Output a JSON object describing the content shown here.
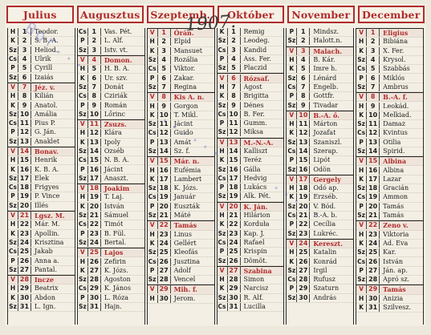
{
  "year": "1907.",
  "stamp_text": [
    "Bor...",
    "......",
    "....."
  ],
  "months": [
    {
      "name": "Julius",
      "days": [
        [
          "H",
          "1",
          "Teodor."
        ],
        [
          "K",
          "2",
          "S. B.-A."
        ],
        [
          "Sz",
          "3",
          "Heliod."
        ],
        [
          "Cs",
          "4",
          "Ulrik"
        ],
        [
          "P",
          "5",
          "Cyrill"
        ],
        [
          "Sz",
          "6",
          "Izaiás"
        ],
        [
          "V",
          "7",
          "Jéz. v."
        ],
        [
          "H",
          "8",
          "Kilián"
        ],
        [
          "K",
          "9",
          "Anatol."
        ],
        [
          "Sz",
          "10",
          "Amália"
        ],
        [
          "Cs",
          "11",
          "Pius P."
        ],
        [
          "P",
          "12",
          "G. Ján."
        ],
        [
          "Sz",
          "13",
          "Anaklet"
        ],
        [
          "V",
          "14",
          "Bonav."
        ],
        [
          "H",
          "15",
          "Henrik"
        ],
        [
          "K",
          "16",
          "K. B. A."
        ],
        [
          "Sz",
          "17",
          "Elek"
        ],
        [
          "Cs",
          "18",
          "Frigyes"
        ],
        [
          "P",
          "19",
          "P. Vince"
        ],
        [
          "Sz",
          "20",
          "Illés"
        ],
        [
          "V",
          "21",
          "Lgsz. M."
        ],
        [
          "H",
          "22",
          "Már. M."
        ],
        [
          "K",
          "23",
          "Apollin."
        ],
        [
          "Sz",
          "24",
          "Krisztina"
        ],
        [
          "Cs",
          "25",
          "Jakab"
        ],
        [
          "P",
          "26",
          "Anna a."
        ],
        [
          "Sz",
          "27",
          "Pantal."
        ],
        [
          "V",
          "28",
          "Incze"
        ],
        [
          "H",
          "29",
          "Beatrix"
        ],
        [
          "K",
          "30",
          "Abdon"
        ],
        [
          "Sz",
          "31",
          "L. Ign."
        ]
      ]
    },
    {
      "name": "Augusztus",
      "days": [
        [
          "Cs",
          "1",
          "Vas. Pét."
        ],
        [
          "P",
          "2",
          "L. Alf."
        ],
        [
          "Sz",
          "3",
          "Istv. vt."
        ],
        [
          "V",
          "4",
          "Domon."
        ],
        [
          "H",
          "5",
          "H. B. A."
        ],
        [
          "K",
          "6",
          "Ur. szv."
        ],
        [
          "Sz",
          "7",
          "Donát"
        ],
        [
          "Cs",
          "8",
          "Cziriák"
        ],
        [
          "P",
          "9",
          "Román"
        ],
        [
          "Sz",
          "10",
          "Lőrinc"
        ],
        [
          "V",
          "11",
          "Zsuzs."
        ],
        [
          "H",
          "12",
          "Klára"
        ],
        [
          "K",
          "13",
          "Ipoly"
        ],
        [
          "Sz",
          "14",
          "Özséb"
        ],
        [
          "Cs",
          "15",
          "N. B. A."
        ],
        [
          "P",
          "16",
          "Jácint"
        ],
        [
          "Sz",
          "17",
          "Anaszt."
        ],
        [
          "V",
          "18",
          "Joakim"
        ],
        [
          "H",
          "19",
          "T. Laj."
        ],
        [
          "K",
          "20",
          "István"
        ],
        [
          "Sz",
          "21",
          "Sámuel"
        ],
        [
          "Cs",
          "22",
          "Timót"
        ],
        [
          "P",
          "23",
          "B. Fül."
        ],
        [
          "Sz",
          "24",
          "Bertal."
        ],
        [
          "V",
          "25",
          "Lajos"
        ],
        [
          "H",
          "26",
          "Zefirin"
        ],
        [
          "K",
          "27",
          "K. Józs."
        ],
        [
          "Sz",
          "28",
          "Ágoston"
        ],
        [
          "Cs",
          "29",
          "K. János"
        ],
        [
          "P",
          "30",
          "L. Róza"
        ],
        [
          "Sz",
          "31",
          "Hajn."
        ]
      ]
    },
    {
      "name": "Szeptemb.",
      "days": [
        [
          "V",
          "1",
          "Órán."
        ],
        [
          "H",
          "2",
          "Elpid"
        ],
        [
          "K",
          "3",
          "Mansuet"
        ],
        [
          "Sz",
          "4",
          "Rozália"
        ],
        [
          "Cs",
          "5",
          "Viktor."
        ],
        [
          "P",
          "6",
          "Zakar."
        ],
        [
          "Sz",
          "7",
          "Regina"
        ],
        [
          "V",
          "8",
          "Kis A. n."
        ],
        [
          "H",
          "9",
          "Gorgon"
        ],
        [
          "K",
          "10",
          "T. Mikl."
        ],
        [
          "Sz",
          "11",
          "Jácint"
        ],
        [
          "Cs",
          "12",
          "Guido"
        ],
        [
          "P",
          "13",
          "Amát"
        ],
        [
          "Sz",
          "14",
          "Sz. f."
        ],
        [
          "V",
          "15",
          "Már. n."
        ],
        [
          "H",
          "16",
          "Eufémia"
        ],
        [
          "K",
          "17",
          "Lambert"
        ],
        [
          "Sz",
          "18",
          "K. Józs."
        ],
        [
          "Cs",
          "19",
          "Január"
        ],
        [
          "P",
          "20",
          "Euszták"
        ],
        [
          "Sz",
          "21",
          "Máté"
        ],
        [
          "V",
          "22",
          "Tamás"
        ],
        [
          "H",
          "23",
          "Linus"
        ],
        [
          "K",
          "24",
          "Gellért"
        ],
        [
          "Sz",
          "25",
          "Kleofás"
        ],
        [
          "Cs",
          "26",
          "Jusztina"
        ],
        [
          "P",
          "27",
          "Adolf"
        ],
        [
          "Sz",
          "28",
          "Vencel"
        ],
        [
          "V",
          "29",
          "Mih. f."
        ],
        [
          "H",
          "30",
          "Jerom."
        ]
      ]
    },
    {
      "name": "Október",
      "days": [
        [
          "K",
          "1",
          "Remig"
        ],
        [
          "Sz",
          "2",
          "Leodeg."
        ],
        [
          "Cs",
          "3",
          "Kandid"
        ],
        [
          "P",
          "4",
          "Ass. Fer."
        ],
        [
          "Sz",
          "5",
          "Placzid"
        ],
        [
          "V",
          "6",
          "Rózsaf."
        ],
        [
          "H",
          "7",
          "Ágost"
        ],
        [
          "K",
          "8",
          "Brigitta"
        ],
        [
          "Sz",
          "9",
          "Dénes"
        ],
        [
          "Cs",
          "10",
          "B. Fer."
        ],
        [
          "P",
          "11",
          "Gumm."
        ],
        [
          "Sz",
          "12",
          "Miksa"
        ],
        [
          "V",
          "13",
          "M.-N.-A."
        ],
        [
          "H",
          "14",
          "Kalliszt"
        ],
        [
          "K",
          "15",
          "Teréz"
        ],
        [
          "Sz",
          "16",
          "Gálla"
        ],
        [
          "Cs",
          "17",
          "Hedvig"
        ],
        [
          "P",
          "18",
          "Lukács"
        ],
        [
          "Sz",
          "19",
          "Alk. Pét."
        ],
        [
          "V",
          "20",
          "K. Ján."
        ],
        [
          "H",
          "21",
          "Hilárion"
        ],
        [
          "K",
          "22",
          "Korduła"
        ],
        [
          "Sz",
          "23",
          "Kap. J."
        ],
        [
          "Cs",
          "24",
          "Rafael"
        ],
        [
          "P",
          "25",
          "Krispin"
        ],
        [
          "Sz",
          "26",
          "Dömöt."
        ],
        [
          "V",
          "27",
          "Szabina"
        ],
        [
          "H",
          "28",
          "Simon"
        ],
        [
          "K",
          "29",
          "Narcisz"
        ],
        [
          "Sz",
          "30",
          "R. Alf."
        ],
        [
          "Cs",
          "31",
          "Lucilla"
        ]
      ]
    },
    {
      "name": "November",
      "days": [
        [
          "P",
          "1",
          "Mindsz."
        ],
        [
          "Sz",
          "2",
          "Halott.n."
        ],
        [
          "V",
          "3",
          "Malach."
        ],
        [
          "H",
          "4",
          "B. Kár."
        ],
        [
          "K",
          "5",
          "Imre h."
        ],
        [
          "Sz",
          "6",
          "Lénárd"
        ],
        [
          "Cs",
          "7",
          "Engelb."
        ],
        [
          "P",
          "8",
          "Gottfr."
        ],
        [
          "Sz",
          "9",
          "Tivadar"
        ],
        [
          "V",
          "10",
          "B.-A. ő."
        ],
        [
          "H",
          "11",
          "Márton"
        ],
        [
          "K",
          "12",
          "Jozafat"
        ],
        [
          "Sz",
          "13",
          "Szaniszl."
        ],
        [
          "Cs",
          "14",
          "Szerap."
        ],
        [
          "P",
          "15",
          "Lipót"
        ],
        [
          "Sz",
          "16",
          "Ödön"
        ],
        [
          "V",
          "17",
          "Gergely"
        ],
        [
          "H",
          "18",
          "Odó ap."
        ],
        [
          "K",
          "19",
          "Erzséb."
        ],
        [
          "Sz",
          "20",
          "V. Bód."
        ],
        [
          "Cs",
          "21",
          "B.-A. b."
        ],
        [
          "P",
          "22",
          "Cecília"
        ],
        [
          "Sz",
          "23",
          "Lukréc."
        ],
        [
          "V",
          "24",
          "Kereszt."
        ],
        [
          "H",
          "25",
          "Katalin"
        ],
        [
          "K",
          "26",
          "Konrád"
        ],
        [
          "Sz",
          "27",
          "Irgil"
        ],
        [
          "Cs",
          "28",
          "Rufusz"
        ],
        [
          "P",
          "29",
          "Szaturn"
        ],
        [
          "Sz",
          "30",
          "András"
        ]
      ]
    },
    {
      "name": "December",
      "days": [
        [
          "V",
          "1",
          "Eligius"
        ],
        [
          "H",
          "2",
          "Bibiána"
        ],
        [
          "K",
          "3",
          "X. Fer."
        ],
        [
          "Sz",
          "4",
          "Krysol."
        ],
        [
          "Cs",
          "5",
          "Szabbás"
        ],
        [
          "P",
          "6",
          "Miklós"
        ],
        [
          "Sz",
          "7",
          "Ambrus"
        ],
        [
          "V",
          "8",
          "B.-A. f."
        ],
        [
          "H",
          "9",
          "Leokád."
        ],
        [
          "K",
          "10",
          "Melkiad."
        ],
        [
          "Sz",
          "11",
          "Damaz"
        ],
        [
          "Cs",
          "12",
          "Kvintus"
        ],
        [
          "P",
          "13",
          "Otilia"
        ],
        [
          "Sz",
          "14",
          "Spirid."
        ],
        [
          "V",
          "15",
          "Albina"
        ],
        [
          "H",
          "16",
          "Albina"
        ],
        [
          "K",
          "17",
          "Lazar"
        ],
        [
          "Sz",
          "18",
          "Gracián"
        ],
        [
          "Cs",
          "19",
          "Ammon"
        ],
        [
          "P",
          "20",
          "Tamás"
        ],
        [
          "Sz",
          "21",
          "Tamás"
        ],
        [
          "V",
          "22",
          "Zeno v."
        ],
        [
          "H",
          "23",
          "Viktoria"
        ],
        [
          "K",
          "24",
          "Ad. Éva"
        ],
        [
          "Sz",
          "25",
          "Kar."
        ],
        [
          "Cs",
          "26",
          "István"
        ],
        [
          "P",
          "27",
          "Ján. ap."
        ],
        [
          "Sz",
          "28",
          "Apró sz."
        ],
        [
          "V",
          "29",
          "Tamás"
        ],
        [
          "H",
          "30",
          "Anizia"
        ],
        [
          "K",
          "31",
          "Szilvesz."
        ]
      ]
    }
  ]
}
